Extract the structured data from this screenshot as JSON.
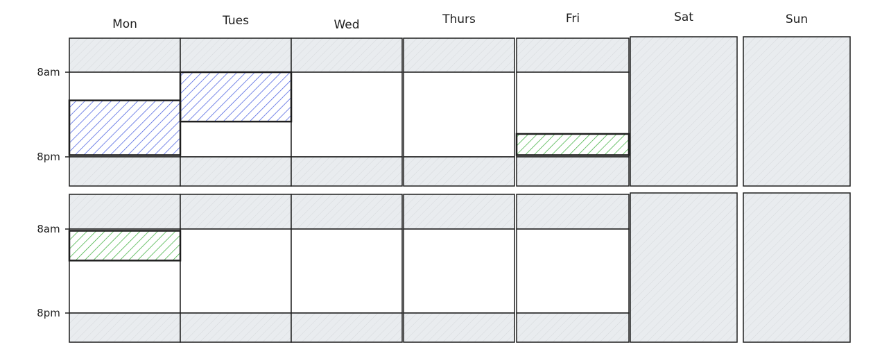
{
  "days": [
    "Mon",
    "Tues",
    "Wed",
    "Thurs",
    "Fri",
    "Sat",
    "Sun"
  ],
  "time_labels": {
    "start": "8am",
    "end": "8pm"
  },
  "weekend_days": [
    "Sat",
    "Sun"
  ],
  "colors": {
    "blue": "#4a5fe0",
    "green": "#40b040",
    "off_hours": "#e9ecef",
    "stroke": "#1e1e1e"
  },
  "weeks": [
    {
      "events": [
        {
          "day": "Mon",
          "start_hour": 12,
          "end_hour": 19.75,
          "color": "blue"
        },
        {
          "day": "Tues",
          "start_hour": 8,
          "end_hour": 15,
          "color": "blue"
        },
        {
          "day": "Fri",
          "start_hour": 16.75,
          "end_hour": 19.75,
          "color": "green"
        }
      ]
    },
    {
      "events": [
        {
          "day": "Mon",
          "start_hour": 8.25,
          "end_hour": 12.5,
          "color": "green"
        }
      ]
    }
  ]
}
